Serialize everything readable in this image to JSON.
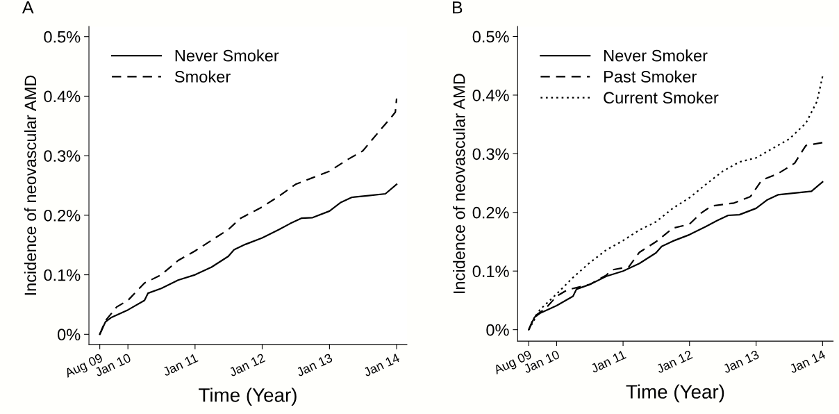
{
  "chart_data": [
    {
      "type": "line",
      "title": "A",
      "xlabel": "Time (Year)",
      "ylabel": "Incidence of neovascular AMD",
      "xlim": [
        "2009-06-03",
        "2014-02-26"
      ],
      "ylim": [
        -0.017,
        0.517
      ],
      "xticks": [
        {
          "value": "2009-08-01",
          "label": "Aug 09"
        },
        {
          "value": "2010-01-01",
          "label": "Jan 10"
        },
        {
          "value": "2011-01-01",
          "label": "Jan 11"
        },
        {
          "value": "2012-01-01",
          "label": "Jan 12"
        },
        {
          "value": "2013-01-01",
          "label": "Jan 13"
        },
        {
          "value": "2014-01-01",
          "label": "Jan 14"
        }
      ],
      "yticks": [
        {
          "value": 0,
          "label": "0%"
        },
        {
          "value": 0.1,
          "label": "0.1%"
        },
        {
          "value": 0.2,
          "label": "0.2%"
        },
        {
          "value": 0.3,
          "label": "0.3%"
        },
        {
          "value": 0.4,
          "label": "0.4%"
        },
        {
          "value": 0.5,
          "label": "0.5%"
        }
      ],
      "grid": false,
      "legend": "top left",
      "series": [
        {
          "name": "Never Smoker",
          "color": "#000000",
          "line_style": "solid",
          "x": [
            "2009-08-01",
            "2009-09-01",
            "2009-10-01",
            "2010-01-01",
            "2010-04-01",
            "2010-04-20",
            "2010-07-01",
            "2010-10-01",
            "2011-01-01",
            "2011-04-01",
            "2011-07-01",
            "2011-08-01",
            "2011-10-01",
            "2012-01-01",
            "2012-04-01",
            "2012-06-01",
            "2012-08-01",
            "2012-10-01",
            "2013-01-01",
            "2013-03-01",
            "2013-05-01",
            "2013-08-01",
            "2013-11-01",
            "2014-01-01"
          ],
          "values": [
            0,
            0.021,
            0.028,
            0.041,
            0.057,
            0.069,
            0.077,
            0.091,
            0.1,
            0.113,
            0.131,
            0.142,
            0.151,
            0.162,
            0.176,
            0.186,
            0.195,
            0.196,
            0.207,
            0.221,
            0.23,
            0.233,
            0.236,
            0.252
          ]
        },
        {
          "name": "Smoker",
          "color": "#000000",
          "line_style": "dashed",
          "x": [
            "2009-08-01",
            "2009-09-01",
            "2009-11-01",
            "2010-01-01",
            "2010-04-01",
            "2010-07-01",
            "2010-10-01",
            "2011-01-01",
            "2011-04-01",
            "2011-07-01",
            "2011-09-01",
            "2012-01-01",
            "2012-04-01",
            "2012-07-01",
            "2012-10-01",
            "2013-01-01",
            "2013-04-01",
            "2013-07-01",
            "2013-10-01",
            "2013-12-01",
            "2013-12-25",
            "2014-01-01"
          ],
          "values": [
            0,
            0.023,
            0.046,
            0.057,
            0.086,
            0.1,
            0.124,
            0.14,
            0.158,
            0.176,
            0.194,
            0.214,
            0.232,
            0.252,
            0.263,
            0.274,
            0.292,
            0.308,
            0.342,
            0.364,
            0.373,
            0.396
          ]
        }
      ]
    },
    {
      "type": "line",
      "title": "B",
      "xlabel": "Time (Year)",
      "ylabel": "Incidence of neovascular AMD",
      "xlim": [
        "2009-06-01",
        "2014-02-28"
      ],
      "ylim": [
        -0.0195,
        0.517
      ],
      "xticks": [
        {
          "value": "2009-08-01",
          "label": "Aug 09"
        },
        {
          "value": "2010-01-01",
          "label": "Jan 10"
        },
        {
          "value": "2011-01-01",
          "label": "Jan 11"
        },
        {
          "value": "2012-01-01",
          "label": "Jan 12"
        },
        {
          "value": "2013-01-01",
          "label": "Jan 13"
        },
        {
          "value": "2014-01-01",
          "label": "Jan 14"
        }
      ],
      "yticks": [
        {
          "value": 0,
          "label": "0%"
        },
        {
          "value": 0.1,
          "label": "0.1%"
        },
        {
          "value": 0.2,
          "label": "0.2%"
        },
        {
          "value": 0.3,
          "label": "0.3%"
        },
        {
          "value": 0.4,
          "label": "0.4%"
        },
        {
          "value": 0.5,
          "label": "0.5%"
        }
      ],
      "grid": false,
      "legend": "top left",
      "series": [
        {
          "name": "Never Smoker",
          "color": "#000000",
          "line_style": "solid",
          "x": [
            "2009-08-01",
            "2009-09-01",
            "2009-10-01",
            "2010-01-01",
            "2010-04-01",
            "2010-04-20",
            "2010-07-01",
            "2010-10-01",
            "2011-01-01",
            "2011-04-01",
            "2011-07-01",
            "2011-08-01",
            "2011-10-01",
            "2012-01-01",
            "2012-04-01",
            "2012-06-01",
            "2012-08-01",
            "2012-10-01",
            "2013-01-01",
            "2013-03-01",
            "2013-05-01",
            "2013-08-01",
            "2013-11-01",
            "2014-01-01"
          ],
          "values": [
            0,
            0.021,
            0.028,
            0.041,
            0.057,
            0.069,
            0.077,
            0.091,
            0.1,
            0.113,
            0.131,
            0.142,
            0.151,
            0.162,
            0.176,
            0.186,
            0.195,
            0.196,
            0.207,
            0.221,
            0.23,
            0.233,
            0.236,
            0.252
          ]
        },
        {
          "name": "Past Smoker",
          "color": "#000000",
          "line_style": "dashed",
          "x": [
            "2009-08-01",
            "2009-09-01",
            "2009-11-01",
            "2010-01-01",
            "2010-03-01",
            "2010-07-01",
            "2010-10-01",
            "2010-11-01",
            "2011-02-01",
            "2011-04-01",
            "2011-07-01",
            "2011-10-01",
            "2012-01-01",
            "2012-03-01",
            "2012-05-01",
            "2012-09-01",
            "2012-12-01",
            "2013-02-01",
            "2013-05-01",
            "2013-08-01",
            "2013-10-01",
            "2014-01-01"
          ],
          "values": [
            0,
            0.023,
            0.036,
            0.057,
            0.068,
            0.077,
            0.093,
            0.102,
            0.107,
            0.132,
            0.15,
            0.173,
            0.18,
            0.198,
            0.211,
            0.216,
            0.227,
            0.255,
            0.266,
            0.284,
            0.314,
            0.319
          ]
        },
        {
          "name": "Current Smoker",
          "color": "#000000",
          "line_style": "dotted",
          "x": [
            "2009-08-01",
            "2009-10-01",
            "2010-01-01",
            "2010-04-01",
            "2010-07-01",
            "2010-10-01",
            "2011-01-01",
            "2011-04-01",
            "2011-07-01",
            "2011-10-01",
            "2012-01-01",
            "2012-04-01",
            "2012-07-01",
            "2012-10-01",
            "2013-01-01",
            "2013-04-01",
            "2013-07-01",
            "2013-10-01",
            "2013-12-01",
            "2014-01-01"
          ],
          "values": [
            0,
            0.034,
            0.061,
            0.089,
            0.114,
            0.136,
            0.152,
            0.17,
            0.184,
            0.207,
            0.225,
            0.248,
            0.27,
            0.286,
            0.293,
            0.309,
            0.325,
            0.352,
            0.389,
            0.432
          ]
        }
      ]
    }
  ]
}
